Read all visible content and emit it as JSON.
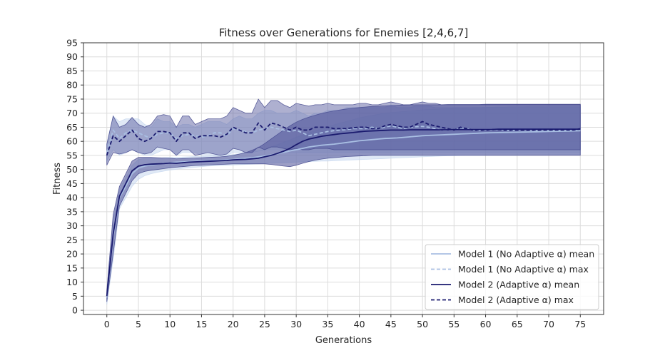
{
  "chart_data": {
    "type": "line",
    "title": "Fitness over Generations for Enemies [2,4,6,7]",
    "xlabel": "Generations",
    "ylabel": "Fitness",
    "xlim": [
      -3.7,
      78.7
    ],
    "ylim": [
      -1.5,
      95
    ],
    "xticks": [
      0,
      5,
      10,
      15,
      20,
      25,
      30,
      35,
      40,
      45,
      50,
      55,
      60,
      65,
      70,
      75
    ],
    "yticks": [
      0,
      5,
      10,
      15,
      20,
      25,
      30,
      35,
      40,
      45,
      50,
      55,
      60,
      65,
      70,
      75,
      80,
      85,
      90,
      95
    ],
    "grid": true,
    "legend_position": "lower-right",
    "colors": {
      "model1": "#a9bfe3",
      "model2": "#1a1a6e",
      "model1_band": "#c6d7ef",
      "model2_band": "#4b4f96"
    },
    "x": [
      0,
      1,
      2,
      3,
      4,
      5,
      6,
      7,
      8,
      9,
      10,
      11,
      12,
      13,
      14,
      15,
      16,
      17,
      18,
      19,
      20,
      21,
      22,
      23,
      24,
      25,
      26,
      27,
      28,
      29,
      30,
      31,
      32,
      33,
      34,
      35,
      36,
      37,
      38,
      39,
      40,
      41,
      42,
      43,
      44,
      45,
      46,
      47,
      48,
      49,
      50,
      51,
      52,
      53,
      54,
      55,
      56,
      57,
      58,
      59,
      60,
      61,
      62,
      63,
      64,
      65,
      66,
      67,
      68,
      69,
      70,
      71,
      72,
      73,
      74,
      75
    ],
    "series": [
      {
        "name": "Model 1 (No Adaptive α) mean",
        "style": "solid",
        "color": "#a9bfe3",
        "values": [
          4.5,
          26,
          40,
          44,
          48.5,
          50.5,
          51.2,
          51.6,
          51.9,
          52.2,
          52.4,
          52.6,
          52.7,
          52.8,
          52.9,
          53,
          53.1,
          53.2,
          53.3,
          53.4,
          53.6,
          53.8,
          54,
          54.2,
          54.5,
          54.8,
          55.2,
          55.6,
          56.1,
          56.6,
          57,
          57.5,
          58,
          58.3,
          58.6,
          58.8,
          59,
          59.3,
          59.6,
          59.9,
          60.2,
          60.4,
          60.6,
          60.8,
          61,
          61.1,
          61.2,
          61.4,
          61.6,
          61.8,
          62,
          62.1,
          62.2,
          62.3,
          62.4,
          62.5,
          62.6,
          62.7,
          62.8,
          62.9,
          63,
          63.05,
          63.1,
          63.15,
          63.2,
          63.25,
          63.3,
          63.35,
          63.4,
          63.45,
          63.5,
          63.55,
          63.6,
          63.65,
          63.7,
          63.75
        ],
        "band_low": [
          2,
          18,
          36,
          40,
          44,
          46.5,
          47.8,
          48.5,
          49,
          49.4,
          49.8,
          50.1,
          50.4,
          50.6,
          50.8,
          51,
          51.2,
          51.3,
          51.4,
          51.5,
          51.6,
          51.7,
          51.8,
          51.9,
          52,
          52.1,
          52.2,
          52.3,
          52.4,
          52.5,
          52.6,
          52.7,
          52.8,
          52.9,
          53,
          53,
          53.1,
          53.2,
          53.3,
          53.4,
          53.5,
          53.6,
          53.7,
          53.8,
          53.9,
          54,
          54.1,
          54.2,
          54.3,
          54.4,
          54.5,
          54.6,
          54.7,
          54.8,
          54.85,
          54.9,
          54.95,
          55,
          55,
          55,
          55.05,
          55.05,
          55.1,
          55.1,
          55.1,
          55.15,
          55.15,
          55.2,
          55.2,
          55.2,
          55.25,
          55.25,
          55.3,
          55.3,
          55.3,
          55.3
        ],
        "band_high": [
          7,
          32,
          43,
          47,
          51.5,
          53.5,
          54,
          54,
          54,
          54.2,
          54.3,
          54.3,
          54.4,
          54.5,
          54.6,
          54.6,
          54.7,
          54.8,
          54.9,
          55,
          55.3,
          55.6,
          55.9,
          56.2,
          56.6,
          57.2,
          58,
          58.8,
          59.7,
          60.5,
          61.5,
          62.2,
          63,
          63.8,
          64.5,
          65.2,
          65.9,
          66.5,
          67.1,
          67.7,
          68.3,
          68.8,
          69.2,
          69.6,
          70,
          70.2,
          70.4,
          70.6,
          70.8,
          71,
          71.2,
          71.3,
          71.4,
          71.5,
          71.6,
          71.7,
          71.8,
          71.9,
          72,
          72,
          72.1,
          72.1,
          72.2,
          72.2,
          72.3,
          72.3,
          72.3,
          72.4,
          72.4,
          72.4,
          72.5,
          72.5,
          72.5,
          72.5,
          72.5,
          72.5
        ]
      },
      {
        "name": "Model 1 (No Adaptive α) max",
        "style": "dashed",
        "color": "#a9bfe3",
        "values": [
          56,
          64,
          61,
          63,
          64,
          63,
          62,
          61,
          62.5,
          63,
          63,
          61,
          62,
          62.5,
          62,
          61.5,
          62,
          63,
          63,
          62,
          64.5,
          64,
          63.5,
          63,
          64,
          64.5,
          65,
          64.5,
          64,
          63.5,
          64,
          63,
          62,
          62.5,
          63,
          63.5,
          63.8,
          64,
          64.2,
          64.5,
          64.5,
          64.5,
          65,
          64.5,
          65,
          65.5,
          65,
          64.5,
          65,
          65.2,
          65.3,
          65,
          64.5,
          64,
          64,
          64.2,
          64.5,
          64.5,
          64,
          63.8,
          64,
          64,
          64.2,
          64,
          63.8,
          64,
          64.2,
          64,
          63.8,
          64,
          64,
          63.8,
          64,
          64,
          64,
          64
        ],
        "band_low": [
          53,
          57,
          55,
          56,
          57,
          56,
          55,
          55,
          56,
          57,
          57,
          55,
          56,
          56,
          56,
          55,
          55,
          55,
          55,
          55,
          56,
          56,
          56,
          56,
          56.5,
          57,
          57,
          57,
          56.5,
          56,
          56,
          56,
          56,
          56,
          56,
          56,
          56,
          56,
          56,
          56,
          56,
          56,
          56,
          56,
          56,
          56,
          56,
          56,
          56,
          56,
          56,
          56,
          56,
          56,
          56,
          56,
          56,
          56,
          56,
          56,
          56,
          56,
          56,
          56,
          56,
          56,
          56,
          56,
          56,
          56,
          56,
          56,
          56,
          56,
          56,
          56
        ],
        "band_high": [
          59,
          69,
          67,
          68,
          68,
          68,
          66,
          65,
          68,
          67,
          67,
          65,
          66,
          66,
          65,
          66,
          67,
          67,
          67,
          66,
          68,
          69,
          68,
          68,
          70,
          71,
          71,
          70,
          70,
          70,
          71,
          70,
          69,
          70,
          70,
          71,
          71,
          71,
          72,
          72,
          72,
          72,
          72,
          72,
          72,
          73,
          72,
          72,
          72,
          72.5,
          72.5,
          72.5,
          72,
          72,
          72,
          72,
          72,
          72,
          72,
          72,
          72,
          72,
          72,
          72,
          72,
          72,
          72,
          72,
          72,
          72,
          72,
          72,
          72,
          72,
          72,
          72
        ]
      },
      {
        "name": "Model 2 (Adaptive α) mean",
        "style": "solid",
        "color": "#1a1a6e",
        "values": [
          5,
          27,
          40.5,
          45,
          49.5,
          51.2,
          51.7,
          51.9,
          52,
          52.1,
          52.3,
          52.2,
          52.4,
          52.6,
          52.7,
          52.8,
          52.9,
          53,
          53.1,
          53.2,
          53.4,
          53.5,
          53.6,
          53.8,
          54,
          54.5,
          55,
          55.7,
          56.5,
          57.5,
          58.8,
          60,
          60.8,
          61.3,
          61.8,
          62.1,
          62.4,
          62.7,
          62.9,
          63.1,
          63.4,
          63.6,
          63.7,
          63.8,
          63.9,
          64,
          64,
          64,
          64.1,
          64.1,
          64.1,
          64.1,
          64.1,
          64.1,
          64.1,
          64.2,
          64.2,
          64.2,
          64.2,
          64.2,
          64.2,
          64.2,
          64.3,
          64.3,
          64.3,
          64.3,
          64.3,
          64.3,
          64.3,
          64.3,
          64.3,
          64.3,
          64.3,
          64.3,
          64.3,
          64.3
        ],
        "band_low": [
          3,
          20,
          37,
          41.5,
          46,
          48.5,
          49.3,
          49.7,
          50,
          50.3,
          50.6,
          50.8,
          51,
          51.2,
          51.4,
          51.5,
          51.6,
          51.7,
          51.8,
          51.9,
          52,
          52,
          52,
          52,
          52,
          52,
          51.8,
          51.5,
          51.2,
          51,
          51.5,
          52.2,
          52.8,
          53.3,
          53.7,
          54,
          54.2,
          54.4,
          54.6,
          54.7,
          54.8,
          54.9,
          55,
          55,
          55,
          55,
          55,
          55,
          55,
          55,
          55,
          55,
          55,
          55,
          55,
          55,
          55,
          55,
          55,
          55,
          55,
          55,
          55,
          55,
          55,
          55,
          55,
          55,
          55,
          55,
          55,
          55,
          55,
          55,
          55,
          55
        ],
        "band_high": [
          7,
          34,
          44,
          48.5,
          53,
          54.3,
          54.3,
          54.3,
          54.2,
          54.1,
          54,
          53.8,
          53.9,
          54,
          54.1,
          54.2,
          54.3,
          54.4,
          54.5,
          54.7,
          55,
          55.5,
          56,
          56.8,
          57.8,
          59.2,
          60.8,
          62.4,
          64,
          65.5,
          66.8,
          67.8,
          68.6,
          69.3,
          69.9,
          70.4,
          70.8,
          71.2,
          71.5,
          71.8,
          72,
          72.2,
          72.4,
          72.5,
          72.6,
          72.7,
          72.8,
          72.9,
          73,
          73,
          73,
          73,
          73,
          73,
          73.1,
          73.1,
          73.1,
          73.1,
          73.1,
          73.1,
          73.2,
          73.2,
          73.2,
          73.2,
          73.2,
          73.2,
          73.2,
          73.2,
          73.2,
          73.2,
          73.2,
          73.2,
          73.2,
          73.2,
          73.2,
          73.2
        ]
      },
      {
        "name": "Model 2 (Adaptive α) max",
        "style": "dashed",
        "color": "#1a1a6e",
        "values": [
          55,
          62,
          60,
          62,
          64,
          61,
          60,
          61,
          63.5,
          63.5,
          63,
          60,
          63,
          63,
          61,
          62,
          62,
          62,
          61.5,
          62.5,
          65,
          64,
          63,
          63,
          66.5,
          64,
          66.5,
          66,
          65,
          64,
          65,
          64,
          64,
          65,
          65,
          65,
          64.5,
          64.5,
          64.5,
          64.8,
          65,
          65,
          64.5,
          64.5,
          65.5,
          66,
          65.5,
          65,
          65,
          66,
          67,
          66,
          65.5,
          65,
          64.5,
          64,
          65,
          64.5,
          64,
          64,
          64,
          64.2,
          64.2,
          64,
          64,
          64,
          64,
          64,
          64,
          64,
          64,
          64,
          64,
          64,
          64,
          64.5
        ],
        "band_low": [
          51.5,
          56,
          55.5,
          56,
          57,
          56,
          55.5,
          56,
          58,
          57.5,
          57,
          55,
          57,
          57,
          55,
          55.5,
          56,
          55.5,
          55,
          55.5,
          57.5,
          57,
          56,
          56,
          58,
          57,
          58,
          58,
          57.5,
          57,
          57.5,
          57,
          57,
          57.5,
          57.5,
          57.5,
          57,
          57,
          57,
          57,
          57,
          57,
          57,
          57,
          57,
          57,
          57,
          57,
          57,
          57,
          57,
          57,
          57,
          57,
          57,
          57,
          57,
          57,
          57,
          57,
          57,
          57,
          57,
          57,
          57,
          57,
          57,
          57,
          57,
          57,
          57,
          57,
          57,
          57,
          57,
          57
        ],
        "band_high": [
          59,
          69,
          65,
          66,
          68.5,
          66,
          65,
          66,
          69,
          69.5,
          69,
          65,
          69,
          69,
          66,
          67,
          68,
          68,
          68,
          69,
          72,
          71,
          70,
          70,
          75,
          72,
          74.5,
          74.5,
          73,
          72,
          73.5,
          73,
          72.5,
          73,
          73,
          73.5,
          73,
          73,
          73,
          73,
          73.5,
          73.5,
          73,
          73,
          73.5,
          74,
          73.5,
          73,
          73,
          73.5,
          74,
          73.5,
          73.5,
          73,
          73,
          73,
          73,
          73,
          73,
          73,
          73,
          73,
          73,
          73,
          73,
          73,
          73,
          73,
          73,
          73,
          73,
          73,
          73,
          73,
          73,
          73
        ]
      }
    ]
  }
}
